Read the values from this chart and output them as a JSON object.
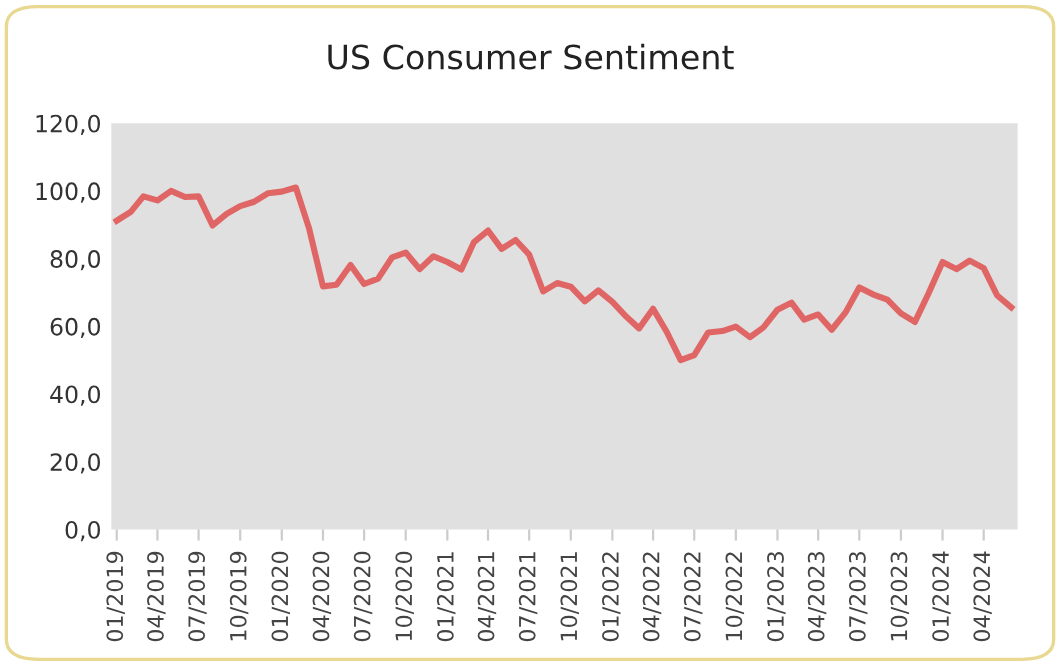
{
  "chart_data": {
    "type": "line",
    "title": "US Consumer Sentiment",
    "x": [
      "2019-01",
      "2019-02",
      "2019-03",
      "2019-04",
      "2019-05",
      "2019-06",
      "2019-07",
      "2019-08",
      "2019-09",
      "2019-10",
      "2019-11",
      "2019-12",
      "2020-01",
      "2020-02",
      "2020-03",
      "2020-04",
      "2020-05",
      "2020-06",
      "2020-07",
      "2020-08",
      "2020-09",
      "2020-10",
      "2020-11",
      "2020-12",
      "2021-01",
      "2021-02",
      "2021-03",
      "2021-04",
      "2021-05",
      "2021-06",
      "2021-07",
      "2021-08",
      "2021-09",
      "2021-10",
      "2021-11",
      "2021-12",
      "2022-01",
      "2022-02",
      "2022-03",
      "2022-04",
      "2022-05",
      "2022-06",
      "2022-07",
      "2022-08",
      "2022-09",
      "2022-10",
      "2022-11",
      "2022-12",
      "2023-01",
      "2023-02",
      "2023-03",
      "2023-04",
      "2023-05",
      "2023-06",
      "2023-07",
      "2023-08",
      "2023-09",
      "2023-10",
      "2023-11",
      "2023-12",
      "2024-01",
      "2024-02",
      "2024-03",
      "2024-04",
      "2024-05",
      "2024-06"
    ],
    "series": [
      {
        "color": "#e06666",
        "values": [
          91.2,
          93.8,
          98.4,
          97.2,
          100.0,
          98.2,
          98.4,
          89.8,
          93.2,
          95.5,
          96.8,
          99.3,
          99.8,
          101.0,
          89.1,
          71.8,
          72.3,
          78.1,
          72.5,
          74.1,
          80.4,
          81.8,
          76.9,
          80.7,
          79.0,
          76.8,
          84.9,
          88.3,
          82.9,
          85.5,
          81.2,
          70.3,
          72.8,
          71.7,
          67.4,
          70.6,
          67.2,
          62.8,
          59.4,
          65.2,
          58.4,
          50.0,
          51.5,
          58.2,
          58.6,
          59.9,
          56.8,
          59.7,
          64.9,
          67.0,
          62.0,
          63.5,
          59.0,
          64.2,
          71.5,
          69.4,
          67.9,
          63.8,
          61.3,
          69.7,
          79.0,
          76.9,
          79.4,
          77.2,
          69.1,
          65.6
        ]
      }
    ],
    "xlim": [
      "2018-12-20",
      "2024-06-15"
    ],
    "xticks": [
      {
        "value": "2019-01",
        "label": "01/2019"
      },
      {
        "value": "2019-04",
        "label": "04/2019"
      },
      {
        "value": "2019-07",
        "label": "07/2019"
      },
      {
        "value": "2019-10",
        "label": "10/2019"
      },
      {
        "value": "2020-01",
        "label": "01/2020"
      },
      {
        "value": "2020-04",
        "label": "04/2020"
      },
      {
        "value": "2020-07",
        "label": "07/2020"
      },
      {
        "value": "2020-10",
        "label": "10/2020"
      },
      {
        "value": "2021-01",
        "label": "01/2021"
      },
      {
        "value": "2021-04",
        "label": "04/2021"
      },
      {
        "value": "2021-07",
        "label": "07/2021"
      },
      {
        "value": "2021-10",
        "label": "10/2021"
      },
      {
        "value": "2022-01",
        "label": "01/2022"
      },
      {
        "value": "2022-04",
        "label": "04/2022"
      },
      {
        "value": "2022-07",
        "label": "07/2022"
      },
      {
        "value": "2022-10",
        "label": "10/2022"
      },
      {
        "value": "2023-01",
        "label": "01/2023"
      },
      {
        "value": "2023-04",
        "label": "04/2023"
      },
      {
        "value": "2023-07",
        "label": "07/2023"
      },
      {
        "value": "2023-10",
        "label": "10/2023"
      },
      {
        "value": "2024-01",
        "label": "01/2024"
      },
      {
        "value": "2024-04",
        "label": "04/2024"
      }
    ],
    "ylim": [
      0,
      120
    ],
    "yticks": [
      {
        "value": 0,
        "label": "0,0"
      },
      {
        "value": 20,
        "label": "20,0"
      },
      {
        "value": 40,
        "label": "40,0"
      },
      {
        "value": 60,
        "label": "60,0"
      },
      {
        "value": 80,
        "label": "80,0"
      },
      {
        "value": 100,
        "label": "100,0"
      },
      {
        "value": 120,
        "label": "120,0"
      }
    ],
    "grid": false,
    "legend": false,
    "marker": "none",
    "line_style": "solid"
  }
}
